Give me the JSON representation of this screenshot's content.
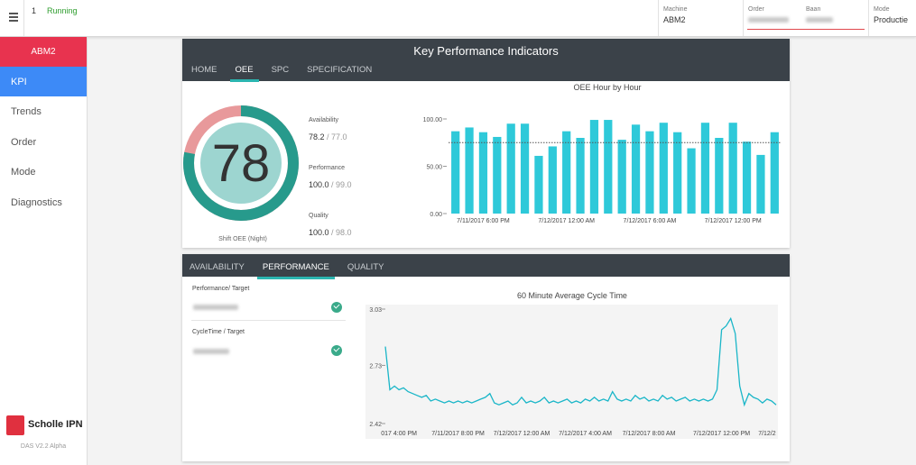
{
  "topbar": {
    "number": "1",
    "status": "Running",
    "machine_label": "Machine",
    "machine": "ABM2",
    "order_label": "Order",
    "baan_label": "Baan",
    "mode_label": "Mode",
    "mode": "Productie"
  },
  "sidebar": {
    "machine": "ABM2",
    "items": [
      "KPI",
      "Trends",
      "Order",
      "Mode",
      "Diagnostics"
    ],
    "brand": "Scholle IPN",
    "version": "DAS V2.2 Alpha"
  },
  "kpi_panel": {
    "title": "Key Performance Indicators",
    "tabs": [
      "HOME",
      "OEE",
      "SPC",
      "SPECIFICATION"
    ],
    "active_tab": 1,
    "gauge": {
      "value": 78,
      "label": "Shift OEE (Night)"
    },
    "stats": [
      {
        "label": "Availability",
        "value": "78.2",
        "target": "/ 77.0"
      },
      {
        "label": "Performance",
        "value": "100.0",
        "target": "/ 99.0"
      },
      {
        "label": "Quality",
        "value": "100.0",
        "target": "/ 98.0"
      }
    ]
  },
  "performance_panel": {
    "tabs": [
      "AVAILABILITY",
      "PERFORMANCE",
      "QUALITY"
    ],
    "active_tab": 1,
    "items": [
      "Performance/ Target",
      "CycleTime / Target"
    ]
  },
  "chart_data": [
    {
      "type": "bar",
      "title": "OEE Hour by Hour",
      "categories": [
        null,
        null,
        "7/11/2017 6:00 PM",
        null,
        null,
        null,
        null,
        null,
        "7/12/2017 12:00 AM",
        null,
        null,
        null,
        null,
        null,
        "7/12/2017 6:00 AM",
        null,
        null,
        null,
        null,
        null,
        "7/12/2017 12:00 PM",
        null,
        null,
        null
      ],
      "values": [
        87,
        91,
        86,
        81,
        95,
        95,
        61,
        71,
        87,
        80,
        99,
        99,
        78,
        94,
        87,
        96,
        86,
        69,
        96,
        80,
        96,
        76,
        62,
        86
      ],
      "color": "#2ec9d9",
      "target": 75,
      "ylim": [
        0,
        100
      ],
      "yticks": [
        {
          "value": 0,
          "label": "0.00"
        },
        {
          "value": 50,
          "label": "50.00"
        },
        {
          "value": 100,
          "label": "100.00"
        }
      ]
    },
    {
      "type": "line",
      "title": "60 Minute Average Cycle Time",
      "categories": [
        null,
        null,
        null,
        "017 4:00 PM",
        null,
        null,
        null,
        null,
        null,
        null,
        null,
        null,
        null,
        null,
        null,
        null,
        "7/11/2017 8:00 PM",
        null,
        null,
        null,
        null,
        null,
        null,
        null,
        null,
        null,
        null,
        null,
        null,
        null,
        "7/12/2017 12:00 AM",
        null,
        null,
        null,
        null,
        null,
        null,
        null,
        null,
        null,
        null,
        null,
        null,
        null,
        "7/12/2017 4:00 AM",
        null,
        null,
        null,
        null,
        null,
        null,
        null,
        null,
        null,
        null,
        null,
        null,
        null,
        "7/12/2017 8:00 AM",
        null,
        null,
        null,
        null,
        null,
        null,
        null,
        null,
        null,
        null,
        null,
        null,
        null,
        null,
        null,
        "7/12/2017 12:00 PM",
        null,
        null,
        null,
        null,
        null,
        null,
        null,
        null,
        null,
        "7/12/2",
        null,
        null
      ],
      "values": [
        2.83,
        2.6,
        2.62,
        2.6,
        2.61,
        2.59,
        2.58,
        2.57,
        2.56,
        2.57,
        2.54,
        2.55,
        2.54,
        2.53,
        2.54,
        2.53,
        2.54,
        2.53,
        2.54,
        2.53,
        2.54,
        2.55,
        2.56,
        2.58,
        2.53,
        2.52,
        2.53,
        2.54,
        2.52,
        2.53,
        2.56,
        2.53,
        2.54,
        2.53,
        2.54,
        2.56,
        2.53,
        2.54,
        2.53,
        2.54,
        2.55,
        2.53,
        2.54,
        2.53,
        2.55,
        2.54,
        2.56,
        2.54,
        2.55,
        2.54,
        2.59,
        2.55,
        2.54,
        2.55,
        2.54,
        2.57,
        2.55,
        2.56,
        2.54,
        2.55,
        2.54,
        2.57,
        2.55,
        2.56,
        2.54,
        2.55,
        2.56,
        2.54,
        2.55,
        2.54,
        2.55,
        2.54,
        2.55,
        2.6,
        2.92,
        2.94,
        2.98,
        2.9,
        2.62,
        2.52,
        2.58,
        2.56,
        2.55,
        2.53,
        2.55,
        2.54,
        2.52
      ],
      "color": "#1ab6c8",
      "ylim": [
        2.42,
        3.03
      ],
      "yticks": [
        2.42,
        2.73,
        3.03
      ]
    }
  ]
}
